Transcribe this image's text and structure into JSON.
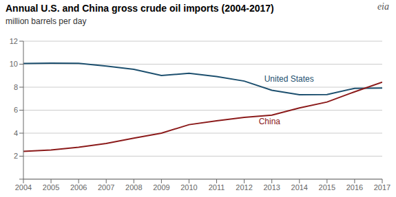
{
  "chart_data": {
    "type": "line",
    "title": "Annual U.S. and China gross crude oil imports (2004-2017)",
    "subtitle": "million barrels per day",
    "x": [
      2004,
      2005,
      2006,
      2007,
      2008,
      2009,
      2010,
      2011,
      2012,
      2013,
      2014,
      2015,
      2016,
      2017
    ],
    "series": [
      {
        "name": "United States",
        "color": "#1c4f6e",
        "values": [
          10.06,
          10.09,
          10.07,
          9.84,
          9.55,
          9.01,
          9.21,
          8.93,
          8.53,
          7.73,
          7.34,
          7.36,
          7.9,
          7.93
        ]
      },
      {
        "name": "China",
        "color": "#8b1a1a",
        "values": [
          2.42,
          2.54,
          2.77,
          3.1,
          3.57,
          4.0,
          4.74,
          5.07,
          5.37,
          5.57,
          6.19,
          6.71,
          7.6,
          8.43
        ]
      }
    ],
    "xlim": [
      2004,
      2017
    ],
    "xticks": [
      2004,
      2005,
      2006,
      2007,
      2008,
      2009,
      2010,
      2011,
      2012,
      2013,
      2014,
      2015,
      2016,
      2017
    ],
    "ylim": [
      0,
      12
    ],
    "yticks": [
      {
        "value": 0,
        "label": null
      },
      2,
      4,
      6,
      8,
      10,
      12
    ],
    "grid": true,
    "annotations": [
      {
        "text": "United States",
        "x": 2012.6,
        "y": 8.72,
        "color": "#1c4f6e"
      },
      {
        "text": "China",
        "x": 2012.4,
        "y": 5.05,
        "color": "#8b1a1a"
      },
      {
        "text": "eia"
      }
    ]
  }
}
